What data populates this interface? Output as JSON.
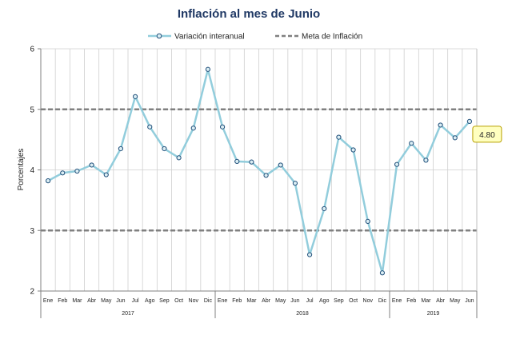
{
  "chart_data": {
    "type": "line",
    "title": "Inflación al mes de Junio",
    "ylabel": "Porcentajes",
    "xlabel": "",
    "ylim": [
      2,
      6
    ],
    "yticks": [
      "2",
      "3",
      "4",
      "5",
      "6"
    ],
    "grid": true,
    "legend_position": "top",
    "categories": [
      "Ene",
      "Feb",
      "Mar",
      "Abr",
      "May",
      "Jun",
      "Jul",
      "Ago",
      "Sep",
      "Oct",
      "Nov",
      "Dic",
      "Ene",
      "Feb",
      "Mar",
      "Abr",
      "May",
      "Jun",
      "Jul",
      "Ago",
      "Sep",
      "Oct",
      "Nov",
      "Dic",
      "Ene",
      "Feb",
      "Mar",
      "Abr",
      "May",
      "Jun"
    ],
    "year_groups": [
      {
        "label": "2017",
        "count": 12
      },
      {
        "label": "2018",
        "count": 12
      },
      {
        "label": "2019",
        "count": 6
      }
    ],
    "series": [
      {
        "name": "Variación interanual",
        "color": "#92cddc",
        "marker_color": "#1f4e79",
        "values": [
          3.82,
          3.95,
          3.98,
          4.08,
          3.92,
          4.35,
          5.21,
          4.71,
          4.35,
          4.2,
          4.69,
          5.66,
          4.71,
          4.14,
          4.13,
          3.91,
          4.08,
          3.78,
          2.6,
          3.36,
          4.54,
          4.33,
          3.15,
          2.3,
          4.09,
          4.44,
          4.16,
          4.74,
          4.53,
          4.8
        ]
      }
    ],
    "reference_lines": [
      {
        "name": "Meta de Inflación",
        "values": [
          3,
          5
        ],
        "color": "#808080",
        "dashed": true
      }
    ],
    "callout": {
      "label": "4.80",
      "point_index": 29,
      "fill": "#ffffc0",
      "border": "#b8a000"
    }
  }
}
